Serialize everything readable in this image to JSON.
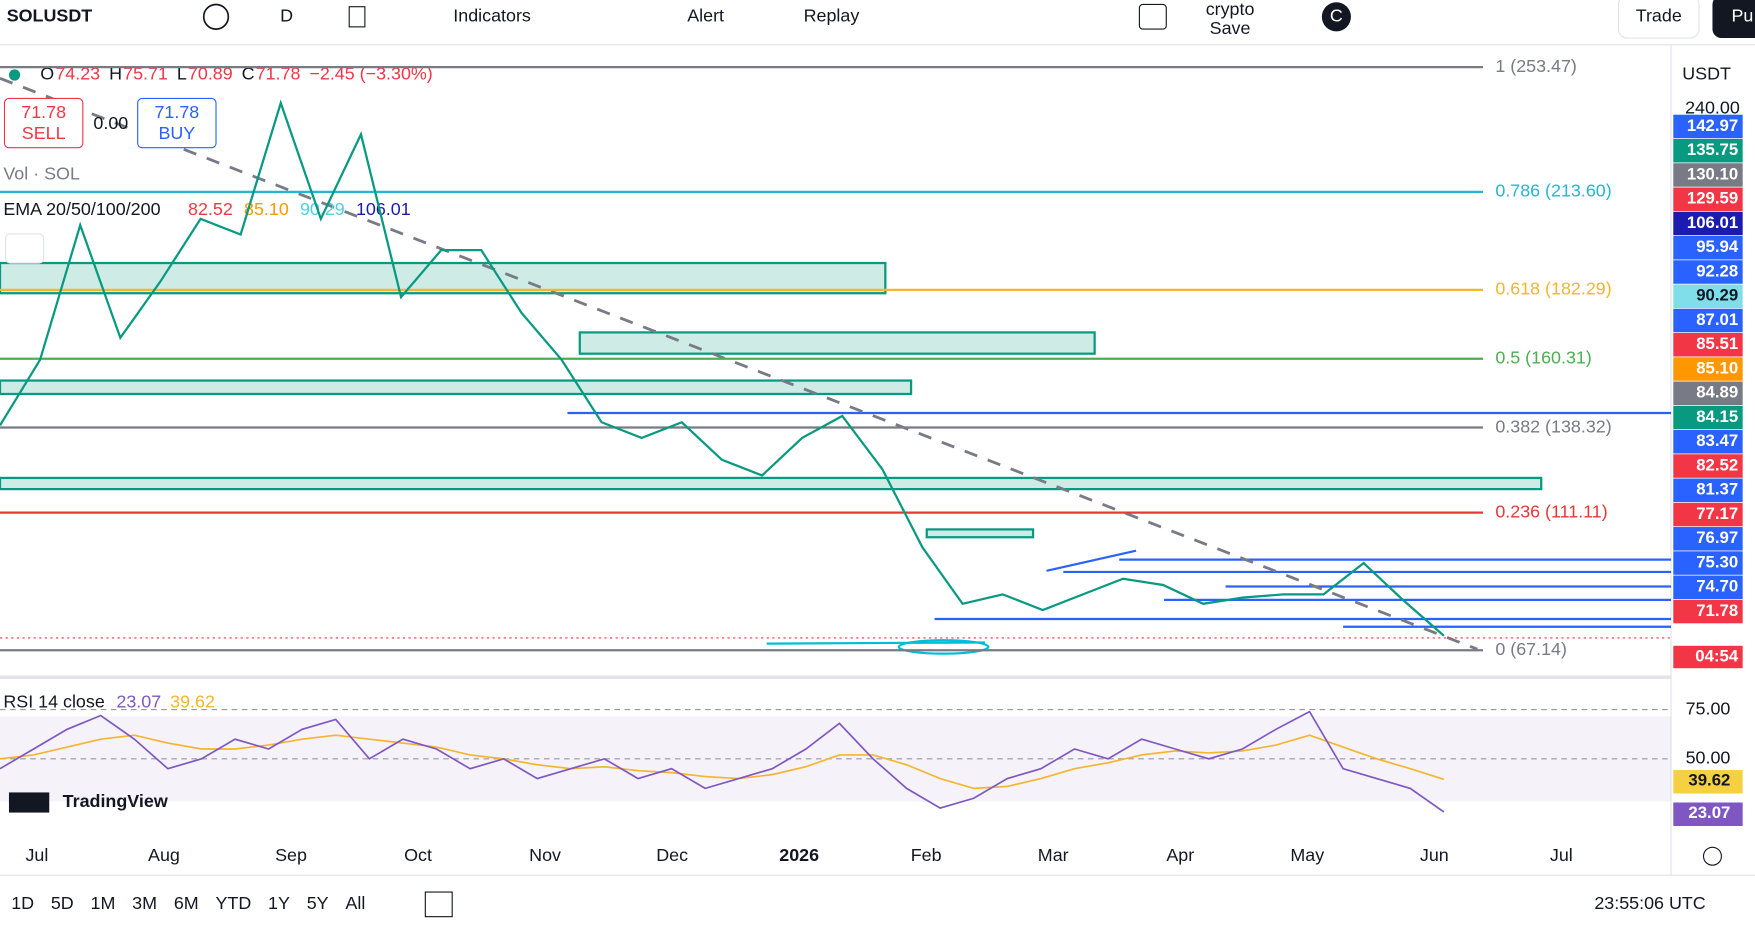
{
  "toolbar": {
    "symbol": "SOLUSDT",
    "interval": "D",
    "indicators": "Indicators",
    "alert": "Alert",
    "replay": "Replay",
    "layout": "crypto",
    "save": "Save",
    "avatar": "C",
    "trade": "Trade",
    "publish": "Pu"
  },
  "legend": {
    "ohlc": [
      {
        "key": "O",
        "value": "74.23"
      },
      {
        "key": "H",
        "value": "75.71"
      },
      {
        "key": "L",
        "value": "70.89"
      },
      {
        "key": "C",
        "value": "71.78"
      }
    ],
    "change": "−2.45 (−3.30%)",
    "sell_price": "71.78",
    "sell": "SELL",
    "spread": "0.00",
    "buy_price": "71.78",
    "buy": "BUY",
    "volume": "Vol · SOL",
    "ema_title": "EMA 20/50/100/200",
    "ema_values": [
      {
        "text": "82.52",
        "color": "#f23645"
      },
      {
        "text": "85.10",
        "color": "#ff9800"
      },
      {
        "text": "90.29",
        "color": "#4dd0e1"
      },
      {
        "text": "106.01",
        "color": "#1b1bb0"
      }
    ]
  },
  "fib_levels": [
    {
      "label": "1 (253.47)",
      "price": 253.47,
      "color": "#787b86"
    },
    {
      "label": "0.786 (213.60)",
      "price": 213.6,
      "color": "#22b8cf"
    },
    {
      "label": "0.618 (182.29)",
      "price": 182.29,
      "color": "#f5b52e"
    },
    {
      "label": "0.5 (160.31)",
      "price": 160.31,
      "color": "#4caf50"
    },
    {
      "label": "0.382 (138.32)",
      "price": 138.32,
      "color": "#787b86"
    },
    {
      "label": "0.236 (111.11)",
      "price": 111.11,
      "color": "#e53935"
    },
    {
      "label": "0 (67.14)",
      "price": 67.14,
      "color": "#787b86"
    }
  ],
  "price_series": {
    "color": "#089981",
    "values": [
      139,
      160,
      203,
      167,
      185,
      205,
      200,
      242,
      205,
      232,
      180,
      195,
      195,
      175,
      160,
      140,
      135,
      140,
      128,
      123,
      135,
      142,
      125,
      100,
      82,
      85,
      80,
      85,
      90,
      88,
      82,
      84,
      85,
      85,
      95,
      83,
      71.78
    ]
  },
  "price_scale": {
    "currency": "USDT",
    "top_tick": "240.00",
    "tags": [
      {
        "text": "142.97",
        "color": "#2962ff"
      },
      {
        "text": "135.75",
        "color": "#089981"
      },
      {
        "text": "130.10",
        "color": "#787b86"
      },
      {
        "text": "129.59",
        "color": "#f23645"
      },
      {
        "text": "106.01",
        "color": "#1b1bb0"
      },
      {
        "text": "95.94",
        "color": "#2962ff"
      },
      {
        "text": "92.28",
        "color": "#2962ff"
      },
      {
        "text": "90.29",
        "color": "#80deea"
      },
      {
        "text": "87.01",
        "color": "#2962ff"
      },
      {
        "text": "85.51",
        "color": "#f23645"
      },
      {
        "text": "85.10",
        "color": "#ff9800"
      },
      {
        "text": "84.89",
        "color": "#787b86"
      },
      {
        "text": "84.15",
        "color": "#089981"
      },
      {
        "text": "83.47",
        "color": "#2962ff"
      },
      {
        "text": "82.52",
        "color": "#f23645"
      },
      {
        "text": "81.37",
        "color": "#2962ff"
      },
      {
        "text": "77.17",
        "color": "#f23645"
      },
      {
        "text": "76.97",
        "color": "#2962ff"
      },
      {
        "text": "75.30",
        "color": "#2962ff"
      },
      {
        "text": "74.70",
        "color": "#2962ff"
      },
      {
        "text": "71.78",
        "color": "#f23645"
      }
    ],
    "countdown": "04:54"
  },
  "rsi": {
    "title": "RSI 14 close",
    "value": "23.07",
    "ma_value": "39.62",
    "ticks": [
      {
        "value": 75,
        "label": "75.00"
      },
      {
        "value": 50,
        "label": "50.00"
      }
    ],
    "values": [
      45,
      55,
      65,
      72,
      60,
      45,
      50,
      60,
      55,
      65,
      70,
      50,
      60,
      55,
      45,
      50,
      40,
      45,
      50,
      40,
      45,
      35,
      40,
      45,
      55,
      68,
      50,
      35,
      25,
      30,
      40,
      45,
      55,
      50,
      60,
      55,
      50,
      55,
      65,
      74,
      45,
      40,
      35,
      23.07
    ],
    "ma": [
      50,
      52,
      56,
      60,
      62,
      58,
      55,
      55,
      57,
      60,
      62,
      60,
      58,
      56,
      52,
      50,
      47,
      45,
      46,
      44,
      43,
      41,
      40,
      42,
      46,
      52,
      52,
      47,
      40,
      35,
      36,
      40,
      45,
      48,
      52,
      54,
      53,
      54,
      57,
      62,
      56,
      50,
      45,
      39.62
    ]
  },
  "time_axis": [
    "Jul",
    "Aug",
    "Sep",
    "Oct",
    "Nov",
    "Dec",
    "2026",
    "Feb",
    "Mar",
    "Apr",
    "May",
    "Jun",
    "Jul"
  ],
  "brand": "TradingView",
  "bottom_bar": {
    "ranges": [
      "1D",
      "5D",
      "1M",
      "3M",
      "6M",
      "YTD",
      "1Y",
      "5Y",
      "All"
    ],
    "clock": "23:55:06 UTC"
  }
}
